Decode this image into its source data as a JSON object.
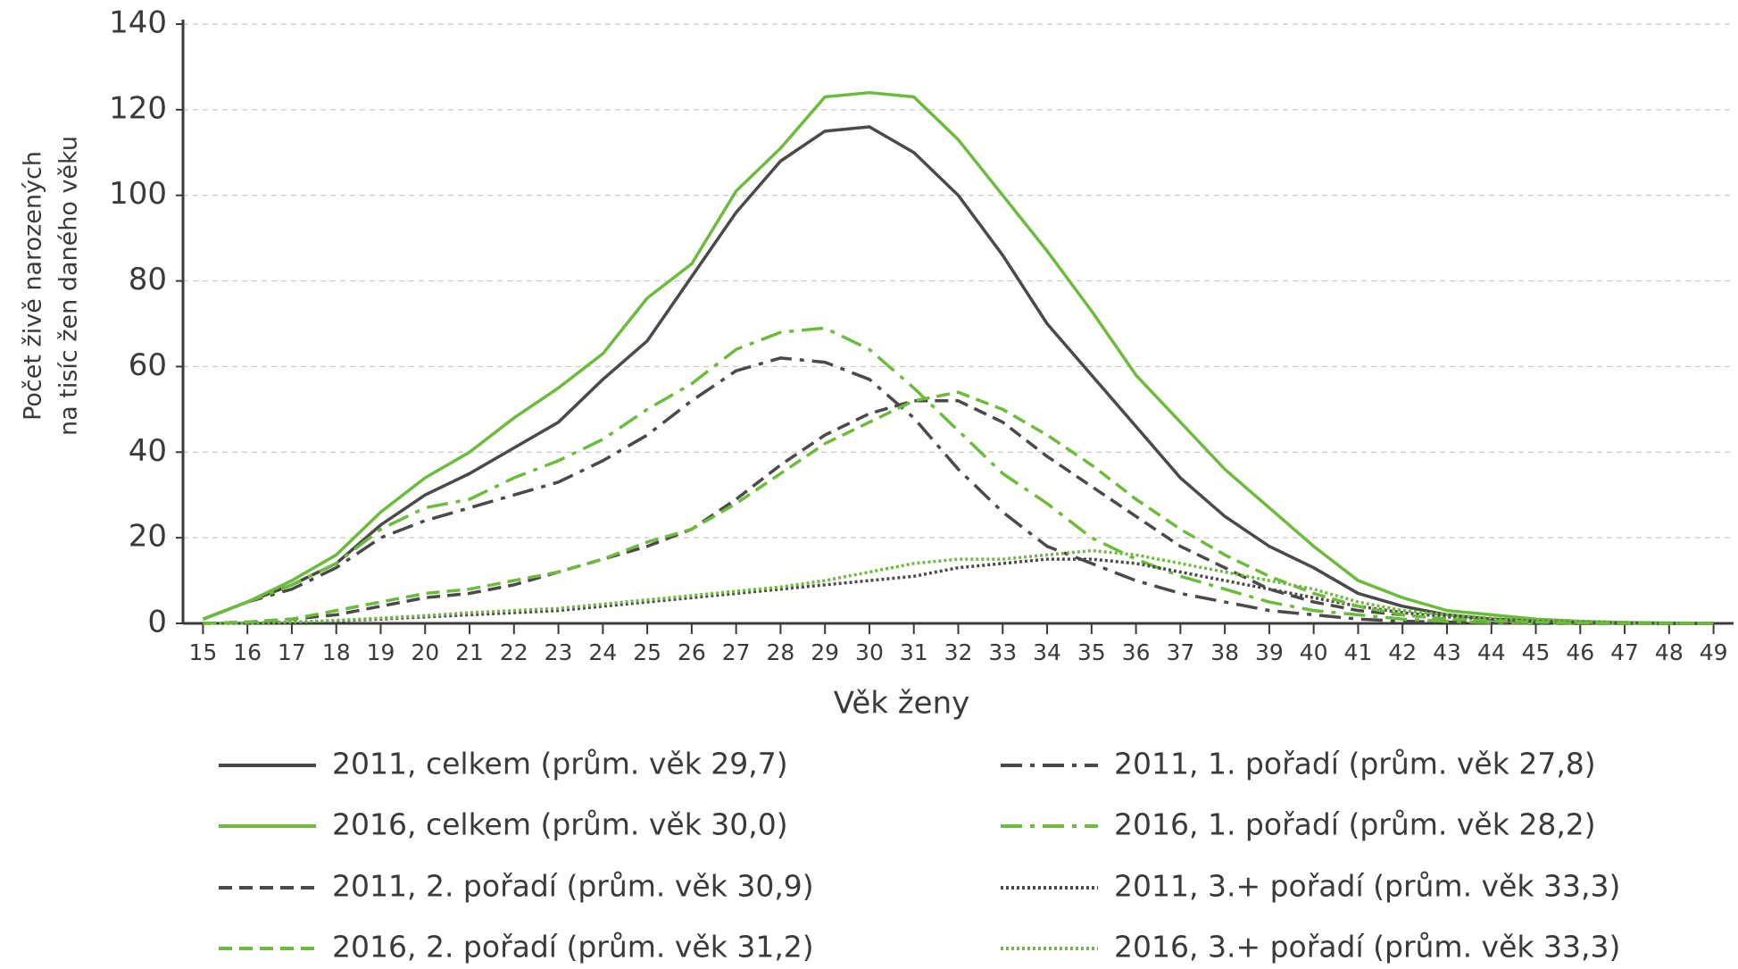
{
  "chart_data": {
    "type": "line",
    "x_label": "Věk ženy",
    "y_label": [
      "Počet živě narozených",
      "na tisíc žen daného věku"
    ],
    "x": [
      15,
      16,
      17,
      18,
      19,
      20,
      21,
      22,
      23,
      24,
      25,
      26,
      27,
      28,
      29,
      30,
      31,
      32,
      33,
      34,
      35,
      36,
      37,
      38,
      39,
      40,
      41,
      42,
      43,
      44,
      45,
      46,
      47,
      48,
      49
    ],
    "xlim": [
      14.55,
      49.45
    ],
    "xticks": [
      15,
      16,
      17,
      18,
      19,
      20,
      21,
      22,
      23,
      24,
      25,
      26,
      27,
      28,
      29,
      30,
      31,
      32,
      33,
      34,
      35,
      36,
      37,
      38,
      39,
      40,
      41,
      42,
      43,
      44,
      45,
      46,
      47,
      48,
      49
    ],
    "ylim": [
      0,
      140
    ],
    "yticks": [
      0,
      20,
      40,
      60,
      80,
      100,
      120,
      140
    ],
    "grid": true,
    "series": [
      {
        "name": "2011, celkem (prům. věk 29,7)",
        "color": "#4a4a4a",
        "line_style": "solid",
        "values": [
          1,
          5,
          9,
          14,
          23,
          30,
          35,
          41,
          47,
          57,
          66,
          81,
          96,
          108,
          115,
          116,
          110,
          100,
          86,
          70,
          58,
          46,
          34,
          25,
          18,
          13,
          7,
          4,
          2,
          1,
          0.5,
          0.2,
          0.1,
          0,
          0
        ]
      },
      {
        "name": "2011, 1. pořadí (prům. věk 27,8)",
        "color": "#4a4a4a",
        "line_style": "dashdot",
        "values": [
          1,
          5,
          8,
          13,
          20,
          24,
          27,
          30,
          33,
          38,
          44,
          52,
          59,
          62,
          61,
          57,
          48,
          36,
          26,
          18,
          14,
          10,
          7,
          5,
          3,
          2,
          1,
          0.5,
          0.3,
          0.1,
          0,
          0,
          0,
          0,
          0
        ]
      },
      {
        "name": "2016, celkem (prům. věk 30,0)",
        "color": "#6cbb3c",
        "line_style": "solid",
        "values": [
          1,
          5,
          10,
          16,
          26,
          34,
          40,
          48,
          55,
          63,
          76,
          84,
          101,
          111,
          123,
          124,
          123,
          113,
          100,
          87,
          73,
          58,
          47,
          36,
          27,
          18,
          10,
          6,
          3,
          2,
          1,
          0.5,
          0.2,
          0.1,
          0
        ]
      },
      {
        "name": "2016, 1. pořadí (prům. věk 28,2)",
        "color": "#6cbb3c",
        "line_style": "dashdot",
        "values": [
          1,
          5,
          9,
          14,
          22,
          27,
          29,
          34,
          38,
          43,
          50,
          56,
          64,
          68,
          69,
          64,
          55,
          45,
          35,
          28,
          20,
          15,
          11,
          8,
          5,
          3,
          2,
          1,
          0.5,
          0.2,
          0.1,
          0,
          0,
          0,
          0
        ]
      },
      {
        "name": "2011, 2. pořadí (prům. věk 30,9)",
        "color": "#4a4a4a",
        "line_style": "dashed",
        "values": [
          0,
          0.3,
          1,
          2,
          4,
          6,
          7,
          9,
          12,
          15,
          18,
          22,
          29,
          37,
          44,
          49,
          52,
          52,
          47,
          39,
          32,
          25,
          18,
          13,
          8,
          5,
          3,
          2,
          1,
          0.5,
          0.2,
          0,
          0,
          0,
          0
        ]
      },
      {
        "name": "2011, 3.+ pořadí (prům. věk 33,3)",
        "color": "#4a4a4a",
        "line_style": "dotted",
        "values": [
          0,
          0.1,
          0.3,
          0.6,
          1,
          1.5,
          2,
          2.5,
          3,
          4,
          5,
          6,
          7,
          8,
          9,
          10,
          11,
          13,
          14,
          15,
          15,
          14,
          12,
          10,
          8,
          6,
          4,
          2.5,
          1.5,
          1,
          0.5,
          0.2,
          0.1,
          0,
          0
        ]
      },
      {
        "name": "2016, 2. pořadí (prům. věk 31,2)",
        "color": "#6cbb3c",
        "line_style": "dashed",
        "values": [
          0,
          0.3,
          1,
          3,
          5,
          7,
          8,
          10,
          12,
          15,
          19,
          22,
          28,
          35,
          42,
          47,
          52,
          54,
          50,
          44,
          37,
          29,
          22,
          16,
          11,
          7,
          4,
          2,
          1,
          0.6,
          0.3,
          0.1,
          0,
          0,
          0
        ]
      },
      {
        "name": "2016, 3.+ pořadí (prům. věk 33,3)",
        "color": "#6cbb3c",
        "line_style": "dotted",
        "values": [
          0,
          0.1,
          0.3,
          0.7,
          1.2,
          1.8,
          2.5,
          3,
          3.5,
          4.5,
          5.5,
          6.5,
          7.5,
          8.5,
          10,
          12,
          14,
          15,
          15,
          16,
          17,
          16,
          14,
          12,
          10,
          8,
          5,
          3,
          2,
          1.2,
          0.6,
          0.3,
          0.1,
          0,
          0
        ]
      }
    ]
  }
}
